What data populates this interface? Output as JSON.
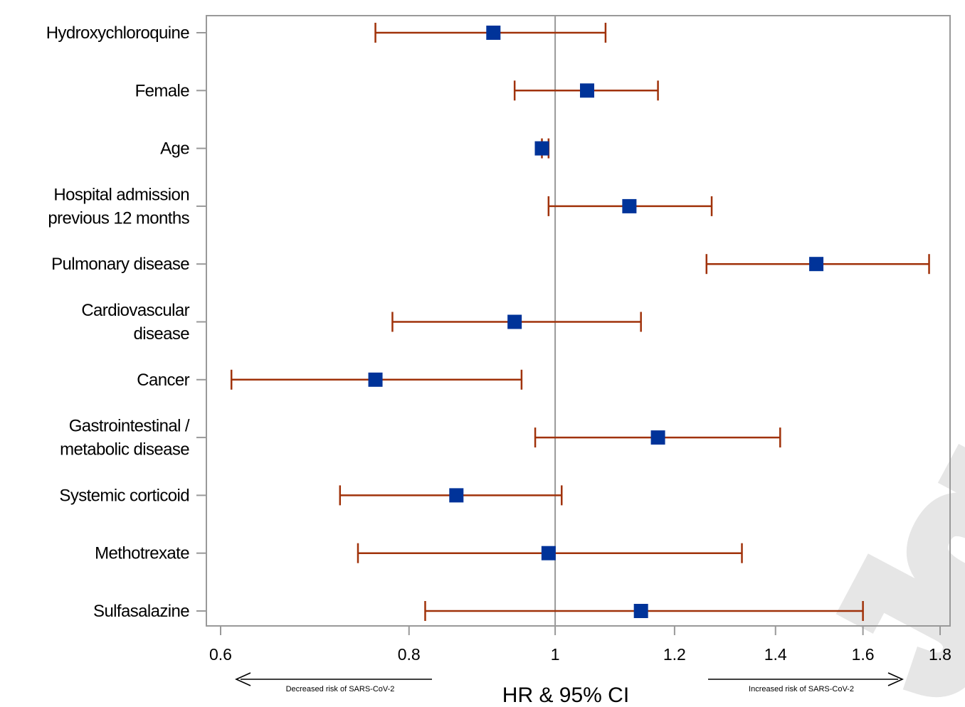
{
  "chart_data": {
    "type": "forest",
    "title": "",
    "xlabel": "HR & 95% CI",
    "ylabel": "",
    "x_scale": "log",
    "xlim": [
      0.59,
      1.82
    ],
    "x_ticks": [
      0.6,
      0.8,
      1,
      1.2,
      1.4,
      1.6,
      1.8
    ],
    "x_tick_labels": [
      "0.6",
      "0.8",
      "1",
      "1.2",
      "1.4",
      "1.6",
      "1.8"
    ],
    "reference_line": 1,
    "marker_color": "#003399",
    "ci_color": "#a0320a",
    "rows": [
      {
        "label": [
          "Hydroxychloroquine"
        ],
        "hr": 0.91,
        "lo": 0.76,
        "hi": 1.08
      },
      {
        "label": [
          "Female"
        ],
        "hr": 1.05,
        "lo": 0.94,
        "hi": 1.17
      },
      {
        "label": [
          "Age"
        ],
        "hr": 0.98,
        "lo": 0.98,
        "hi": 0.99
      },
      {
        "label": [
          "Hospital admission",
          "previous 12 months"
        ],
        "hr": 1.12,
        "lo": 0.99,
        "hi": 1.27
      },
      {
        "label": [
          "Pulmonary disease"
        ],
        "hr": 1.49,
        "lo": 1.26,
        "hi": 1.77
      },
      {
        "label": [
          "Cardiovascular",
          "disease"
        ],
        "hr": 0.94,
        "lo": 0.78,
        "hi": 1.14
      },
      {
        "label": [
          "Cancer"
        ],
        "hr": 0.76,
        "lo": 0.61,
        "hi": 0.95
      },
      {
        "label": [
          "Gastrointestinal /",
          "metabolic disease"
        ],
        "hr": 1.17,
        "lo": 0.97,
        "hi": 1.41
      },
      {
        "label": [
          "Systemic corticoid"
        ],
        "hr": 0.86,
        "lo": 0.72,
        "hi": 1.01
      },
      {
        "label": [
          "Methotrexate"
        ],
        "hr": 0.99,
        "lo": 0.74,
        "hi": 1.33
      },
      {
        "label": [
          "Sulfasalazine"
        ],
        "hr": 1.14,
        "lo": 0.82,
        "hi": 1.6
      }
    ],
    "annotations": {
      "left_arrow": "Decreased risk of SARS-CoV-2",
      "right_arrow": "Increased risk of SARS-CoV-2"
    },
    "grid": false,
    "legend": "none"
  },
  "watermark": "Journal Pre-proof"
}
